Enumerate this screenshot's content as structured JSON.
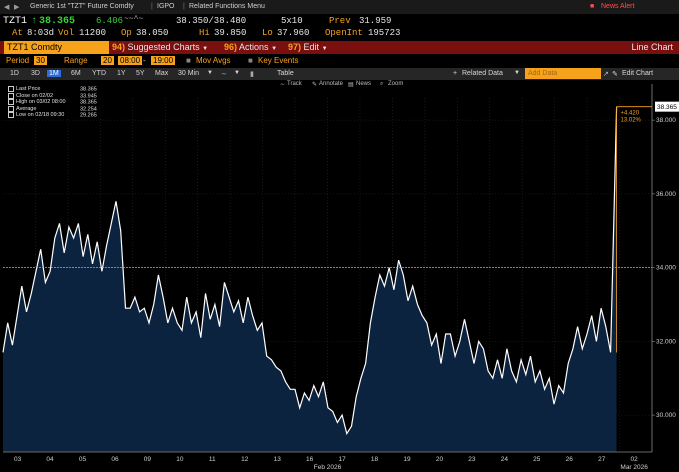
{
  "topbar": {
    "path": "Generic 1st \"TZT\" Future Comdty",
    "function": "IGPO",
    "menu": "Related Functions Menu",
    "news_alert": "News Alert"
  },
  "quote": {
    "ticker": "TZT1",
    "arrow": "↑",
    "last": "38.365",
    "change": "6.406",
    "bid_ask": "38.350/38.480",
    "size": "5x10",
    "prev_label": "Prev",
    "prev": "31.959",
    "at_label": "At",
    "time": "8:03d",
    "vol_label": "Vol",
    "volume": "11200",
    "op_label": "Op",
    "open": "38.050",
    "hi_label": "Hi",
    "high": "39.850",
    "lo_label": "Lo",
    "low": "37.960",
    "oi_label": "OpenInt",
    "open_interest": "195723"
  },
  "command": {
    "security": "TZT1 Comdty",
    "suggested_num": "94)",
    "suggested": "Suggested Charts",
    "actions_num": "96)",
    "actions": "Actions",
    "edit_num": "97)",
    "edit": "Edit",
    "chart_type": "Line Chart"
  },
  "period": {
    "label": "Period",
    "value": "30",
    "range_label": "Range",
    "range": "20",
    "from": "08:00",
    "to": "19:00",
    "mov_avgs": "Mov Avgs",
    "key_events": "Key Events"
  },
  "ranges": {
    "items": [
      "1D",
      "3D",
      "1M",
      "6M",
      "YTD",
      "1Y",
      "5Y",
      "Max"
    ],
    "selected": "1M",
    "interval": "30 Min",
    "table": "Table",
    "related_data": "Related Data",
    "add_data": "Add Data",
    "edit_chart": "Edit Chart"
  },
  "tools": {
    "track": "Track",
    "annotate": "Annotate",
    "news": "News",
    "zoom": "Zoom"
  },
  "legend": [
    {
      "label": "Last Price",
      "value": "38.365"
    },
    {
      "label": "Close on 02/02",
      "value": "33.945"
    },
    {
      "label": "High on 03/02 08:00",
      "value": "38.365"
    },
    {
      "label": "Average",
      "value": "32.254"
    },
    {
      "label": "Low on 02/18 09:30",
      "value": "29.265"
    }
  ],
  "annotation": {
    "change": "+4.420",
    "pct": "13.02%"
  },
  "colors": {
    "accent": "#f7a21b",
    "command_bar": "#7a0f0f",
    "fill": "#0c2340",
    "line": "#ffffff"
  },
  "chart_data": {
    "type": "area",
    "title": "",
    "xlabel": "",
    "ylabel": "",
    "ylim": [
      29.0,
      38.6
    ],
    "y_ticks": [
      "38.000",
      "36.000",
      "34.000",
      "32.000",
      "30.000"
    ],
    "x_ticks": [
      "03",
      "04",
      "05",
      "06",
      "09",
      "10",
      "11",
      "12",
      "13",
      "16",
      "17",
      "18",
      "19",
      "20",
      "23",
      "24",
      "25",
      "26",
      "27",
      "02"
    ],
    "x_month_labels": [
      "Feb 2026",
      "Mar 2026"
    ],
    "last_label": "38.365",
    "reference_line": 34.0,
    "series": [
      {
        "values": [
          31.7,
          32.5,
          31.9,
          32.7,
          33.5,
          32.8,
          33.3,
          33.9,
          34.5,
          33.6,
          33.9,
          34.8,
          35.2,
          34.4,
          35.1,
          34.8,
          35.2,
          34.3,
          34.9,
          34.1,
          34.7,
          33.9,
          34.6,
          35.2,
          35.8,
          35.0,
          32.9,
          32.9,
          33.2,
          32.8,
          32.9,
          32.5,
          33.0,
          33.8,
          33.2,
          32.5,
          32.9,
          32.5,
          32.3,
          33.2,
          32.5,
          32.8,
          32.1,
          33.3,
          32.6,
          33.0,
          32.4,
          33.6,
          33.2,
          32.8,
          33.1,
          32.5,
          33.2,
          32.7,
          32.3,
          32.5,
          31.6,
          31.5,
          31.3,
          31.2,
          30.9,
          30.7,
          30.7,
          30.2,
          30.6,
          30.4,
          30.8,
          30.5,
          30.9,
          30.2,
          30.1,
          29.8,
          30.0,
          29.5,
          29.7,
          30.5,
          31.0,
          31.4,
          32.5,
          33.2,
          33.8,
          33.5,
          34.0,
          33.4,
          34.2,
          33.8,
          33.1,
          33.5,
          33.0,
          32.7,
          32.5,
          31.9,
          32.2,
          31.4,
          32.2,
          32.2,
          31.6,
          32.0,
          32.6,
          32.0,
          31.4,
          32.0,
          31.8,
          31.2,
          31.0,
          31.5,
          31.0,
          31.8,
          31.2,
          30.9,
          31.5,
          31.1,
          31.6,
          30.9,
          31.2,
          30.7,
          31.0,
          30.3,
          30.8,
          30.6,
          31.4,
          31.8,
          32.4,
          31.8,
          32.2,
          32.7,
          32.0,
          32.9,
          32.4,
          31.7,
          38.365
        ]
      }
    ]
  }
}
